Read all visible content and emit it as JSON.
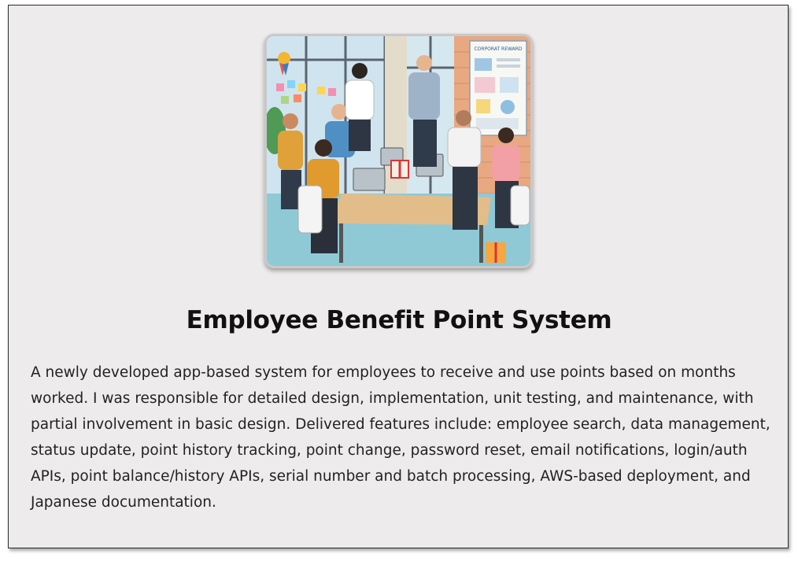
{
  "project": {
    "image_alt": "Illustration of an office team gathered around a table with laptops and gift boxes",
    "image_poster_text": "CORPORAT REWARD",
    "title": "Employee Benefit Point System",
    "description": "A newly developed app-based system for employees to receive and use points based on months worked. I was responsible for detailed design, implementation, unit testing, and maintenance, with partial involvement in basic design. Delivered features include: employee search, data management, status update, point history tracking, point change, password reset, email notifications, login/auth APIs, point balance/history APIs, serial number and batch processing, AWS-based deployment, and Japanese documentation."
  },
  "colors": {
    "card_background": "#edebec",
    "border": "#2b2b2b",
    "title": "#111111",
    "text": "#222222"
  }
}
